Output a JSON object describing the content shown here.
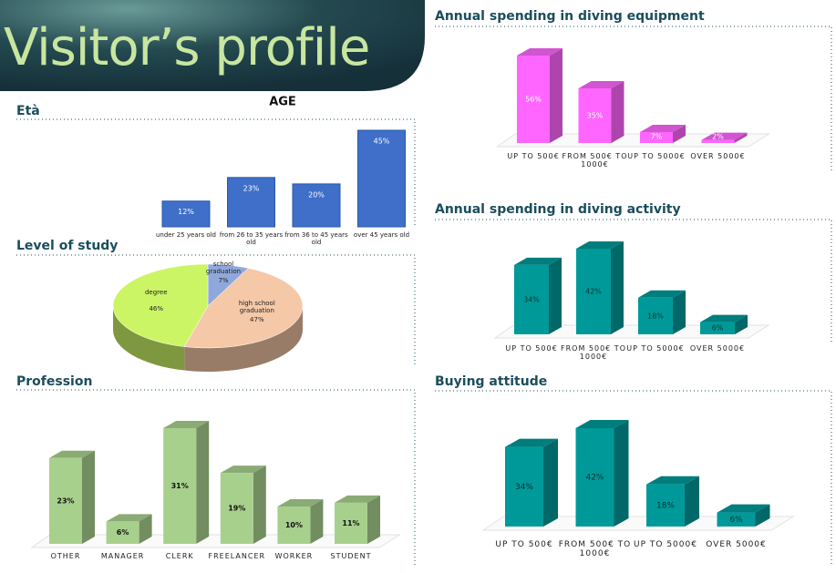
{
  "header": {
    "title": "Visitor’s profile"
  },
  "chart_data": [
    {
      "type": "bar",
      "title": "Età",
      "subtitle": "AGE",
      "color": "#3f6fc8",
      "categories": [
        "under 25 years old",
        "from 26 to 35 years old",
        "from 36 to 45 years old",
        "over 45 years old"
      ],
      "values": [
        12,
        23,
        20,
        45
      ],
      "value_labels": [
        "12%",
        "23%",
        "20%",
        "45%"
      ]
    },
    {
      "type": "pie",
      "title": "Level of study",
      "categories": [
        "school graduation",
        "high school graduation",
        "degree"
      ],
      "values": [
        7,
        47,
        46
      ],
      "value_labels": [
        "7%",
        "47%",
        "46%"
      ],
      "colors": [
        "#8fa8dc",
        "#f5c8a8",
        "#ccf566"
      ]
    },
    {
      "type": "bar",
      "title": "Profession",
      "color": "#a8d08d",
      "categories": [
        "OTHER",
        "MANAGER",
        "CLERK",
        "FREELANCER",
        "WORKER",
        "STUDENT"
      ],
      "values": [
        23,
        6,
        31,
        19,
        10,
        11
      ],
      "value_labels": [
        "23%",
        "6%",
        "31%",
        "19%",
        "10%",
        "11%"
      ]
    },
    {
      "type": "bar",
      "title": "Annual spending in diving equipment",
      "color": "#ff66ff",
      "categories": [
        "UP TO 500€",
        "FROM 500€ TO 1000€",
        "UP TO 5000€",
        "OVER 5000€"
      ],
      "values": [
        56,
        35,
        7,
        2
      ],
      "value_labels": [
        "56%",
        "35%",
        "7%",
        "2%"
      ]
    },
    {
      "type": "bar",
      "title": "Annual spending in diving activity",
      "color": "#009999",
      "categories": [
        "UP TO 500€",
        "FROM 500€ TO 1000€",
        "UP TO 5000€",
        "OVER 5000€"
      ],
      "values": [
        34,
        42,
        18,
        6
      ],
      "value_labels": [
        "34%",
        "42%",
        "18%",
        "6%"
      ]
    },
    {
      "type": "bar",
      "title": "Buying attitude",
      "color": "#009999",
      "categories": [
        "UP TO 500€",
        "FROM 500€ TO 1000€",
        "UP TO 5000€",
        "OVER 5000€"
      ],
      "values": [
        34,
        42,
        18,
        6
      ],
      "value_labels": [
        "34%",
        "42%",
        "18%",
        "6%"
      ]
    }
  ]
}
